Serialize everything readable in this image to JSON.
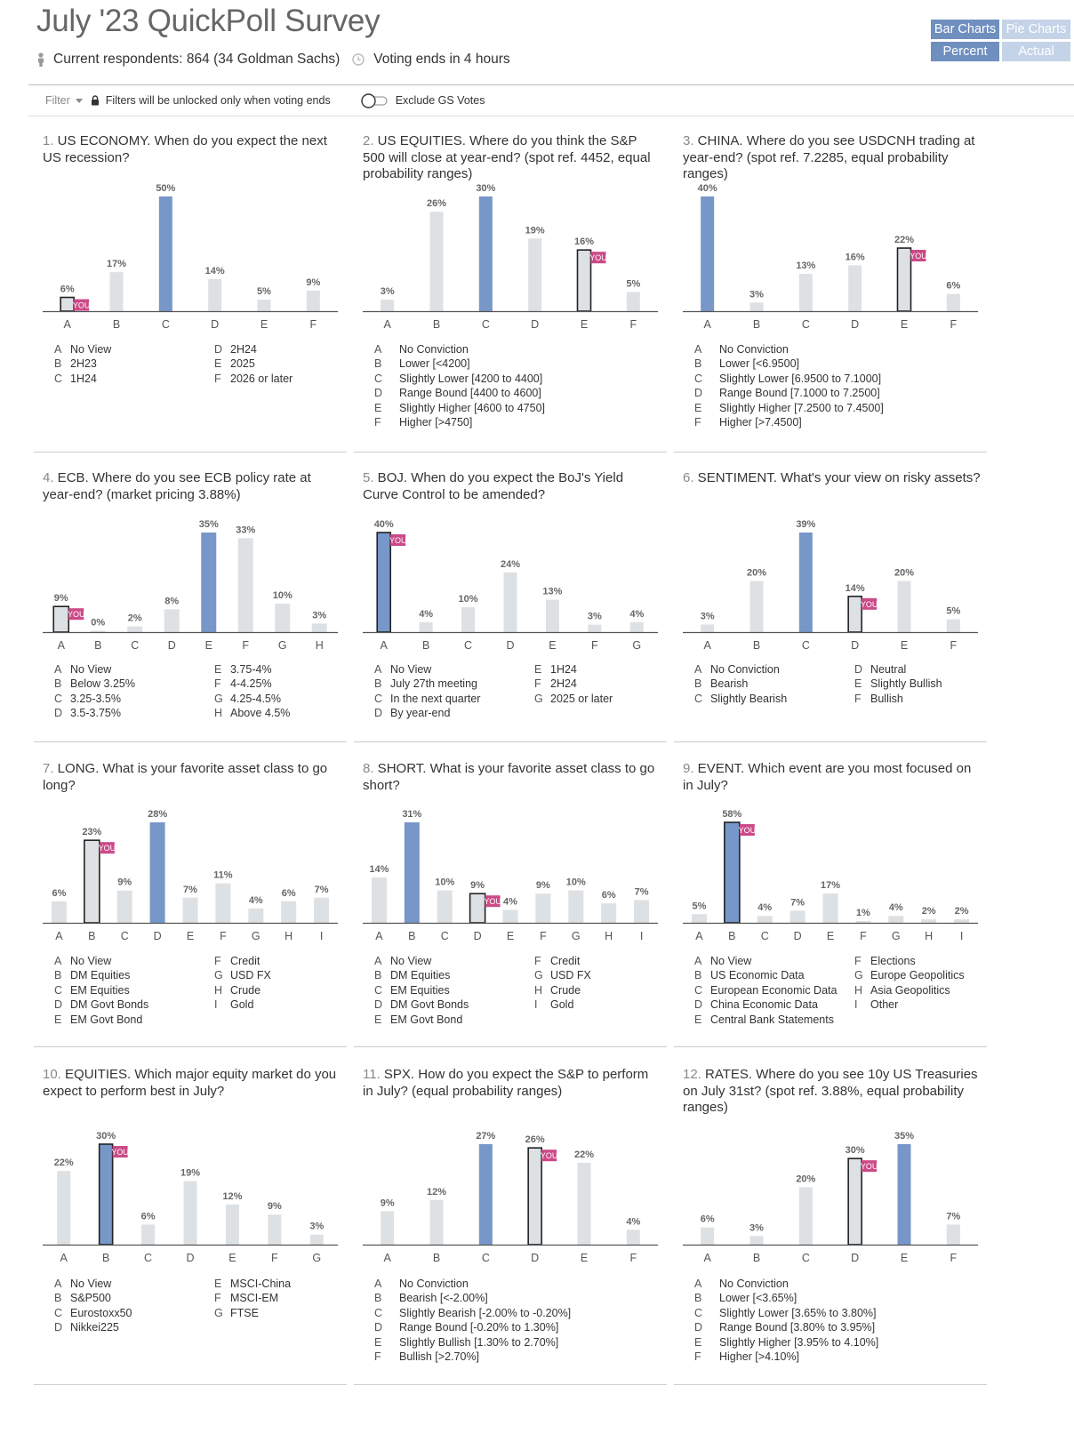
{
  "title": "July '23 QuickPoll Survey",
  "respondents": "Current respondents: 864 (34 Goldman Sachs)",
  "voting": "Voting ends in 4 hours",
  "toggles": {
    "bar": "Bar Charts",
    "pie": "Pie Charts",
    "percent": "Percent",
    "actual": "Actual"
  },
  "filter": {
    "label": "Filter",
    "note": "Filters will be unlocked only when voting ends",
    "exclude": "Exclude GS Votes"
  },
  "colors": {
    "selected": "#7797c8",
    "bar": "#dde1e4",
    "you_badge": "#cc4a88",
    "axis": "#555555"
  },
  "you_label": "YOU",
  "questions": [
    {
      "num": "1.",
      "text": "US ECONOMY. When do you expect the next US recession?",
      "legend_split": 3,
      "options": [
        {
          "key": "A",
          "label": "No View",
          "value": 6,
          "you": true
        },
        {
          "key": "B",
          "label": "2H23",
          "value": 17
        },
        {
          "key": "C",
          "label": "1H24",
          "value": 50,
          "top": true
        },
        {
          "key": "D",
          "label": "2H24",
          "value": 14
        },
        {
          "key": "E",
          "label": "2025",
          "value": 5
        },
        {
          "key": "F",
          "label": "2026 or later",
          "value": 9
        }
      ]
    },
    {
      "num": "2.",
      "text": "US EQUITIES. Where do you think the S&P 500 will close at year-end? (spot ref. 4452, equal probability ranges)",
      "legend_split": 6,
      "options": [
        {
          "key": "A",
          "label": "No Conviction",
          "value": 3
        },
        {
          "key": "B",
          "label": "Lower [<4200]",
          "value": 26
        },
        {
          "key": "C",
          "label": "Slightly Lower [4200 to 4400]",
          "value": 30,
          "top": true
        },
        {
          "key": "D",
          "label": "Range Bound [4400 to 4600]",
          "value": 19
        },
        {
          "key": "E",
          "label": "Slightly Higher [4600 to 4750]",
          "value": 16,
          "you": true
        },
        {
          "key": "F",
          "label": "Higher [>4750]",
          "value": 5
        }
      ]
    },
    {
      "num": "3.",
      "text": "CHINA. Where do you see USDCNH trading at year-end? (spot ref. 7.2285, equal probability ranges)",
      "legend_split": 6,
      "options": [
        {
          "key": "A",
          "label": "No Conviction",
          "value": 40,
          "top": true
        },
        {
          "key": "B",
          "label": "Lower [<6.9500]",
          "value": 3
        },
        {
          "key": "C",
          "label": "Slightly Lower [6.9500 to 7.1000]",
          "value": 13
        },
        {
          "key": "D",
          "label": "Range Bound [7.1000 to 7.2500]",
          "value": 16
        },
        {
          "key": "E",
          "label": "Slightly Higher [7.2500 to 7.4500]",
          "value": 22,
          "you": true
        },
        {
          "key": "F",
          "label": "Higher [>7.4500]",
          "value": 6
        }
      ]
    },
    {
      "num": "4.",
      "text": "ECB. Where do you see ECB policy rate at year-end? (market pricing 3.88%)",
      "legend_split": 4,
      "options": [
        {
          "key": "A",
          "label": "No View",
          "value": 9,
          "you": true
        },
        {
          "key": "B",
          "label": "Below 3.25%",
          "value": 0
        },
        {
          "key": "C",
          "label": "3.25-3.5%",
          "value": 2
        },
        {
          "key": "D",
          "label": "3.5-3.75%",
          "value": 8
        },
        {
          "key": "E",
          "label": "3.75-4%",
          "value": 35,
          "top": true
        },
        {
          "key": "F",
          "label": "4-4.25%",
          "value": 33
        },
        {
          "key": "G",
          "label": "4.25-4.5%",
          "value": 10
        },
        {
          "key": "H",
          "label": "Above 4.5%",
          "value": 3
        }
      ]
    },
    {
      "num": "5.",
      "text": "BOJ. When do you expect the BoJ's Yield Curve Control to be amended?",
      "legend_split": 4,
      "options": [
        {
          "key": "A",
          "label": "No View",
          "value": 40,
          "top": true,
          "you": true
        },
        {
          "key": "B",
          "label": "July 27th meeting",
          "value": 4
        },
        {
          "key": "C",
          "label": "In the next quarter",
          "value": 10
        },
        {
          "key": "D",
          "label": "By year-end",
          "value": 24
        },
        {
          "key": "E",
          "label": "1H24",
          "value": 13
        },
        {
          "key": "F",
          "label": "2H24",
          "value": 3
        },
        {
          "key": "G",
          "label": "2025 or later",
          "value": 4
        }
      ]
    },
    {
      "num": "6.",
      "text": "SENTIMENT. What's your view on risky assets?",
      "legend_split": 3,
      "options": [
        {
          "key": "A",
          "label": "No Conviction",
          "value": 3
        },
        {
          "key": "B",
          "label": "Bearish",
          "value": 20
        },
        {
          "key": "C",
          "label": "Slightly Bearish",
          "value": 39,
          "top": true
        },
        {
          "key": "D",
          "label": "Neutral",
          "value": 14,
          "you": true
        },
        {
          "key": "E",
          "label": "Slightly Bullish",
          "value": 20
        },
        {
          "key": "F",
          "label": "Bullish",
          "value": 5
        }
      ]
    },
    {
      "num": "7.",
      "text": "LONG. What is your favorite asset class to go long?",
      "legend_split": 5,
      "options": [
        {
          "key": "A",
          "label": "No View",
          "value": 6
        },
        {
          "key": "B",
          "label": "DM Equities",
          "value": 23,
          "you": true
        },
        {
          "key": "C",
          "label": "EM Equities",
          "value": 9
        },
        {
          "key": "D",
          "label": "DM Govt Bonds",
          "value": 28,
          "top": true
        },
        {
          "key": "E",
          "label": "EM Govt Bond",
          "value": 7
        },
        {
          "key": "F",
          "label": "Credit",
          "value": 11
        },
        {
          "key": "G",
          "label": "USD FX",
          "value": 4
        },
        {
          "key": "H",
          "label": "Crude",
          "value": 6
        },
        {
          "key": "I",
          "label": "Gold",
          "value": 7
        }
      ]
    },
    {
      "num": "8.",
      "text": "SHORT. What is your favorite asset class to go short?",
      "legend_split": 5,
      "options": [
        {
          "key": "A",
          "label": "No View",
          "value": 14
        },
        {
          "key": "B",
          "label": "DM Equities",
          "value": 31,
          "top": true
        },
        {
          "key": "C",
          "label": "EM Equities",
          "value": 10
        },
        {
          "key": "D",
          "label": "DM Govt Bonds",
          "value": 9,
          "you": true
        },
        {
          "key": "E",
          "label": "EM Govt Bond",
          "value": 4
        },
        {
          "key": "F",
          "label": "Credit",
          "value": 9
        },
        {
          "key": "G",
          "label": "USD FX",
          "value": 10
        },
        {
          "key": "H",
          "label": "Crude",
          "value": 6
        },
        {
          "key": "I",
          "label": "Gold",
          "value": 7
        }
      ]
    },
    {
      "num": "9.",
      "text": "EVENT. Which event are you most focused on in July?",
      "legend_split": 5,
      "options": [
        {
          "key": "A",
          "label": "No View",
          "value": 5
        },
        {
          "key": "B",
          "label": "US Economic Data",
          "value": 58,
          "top": true,
          "you": true
        },
        {
          "key": "C",
          "label": "European Economic Data",
          "value": 4
        },
        {
          "key": "D",
          "label": "China Economic Data",
          "value": 7
        },
        {
          "key": "E",
          "label": "Central Bank Statements",
          "value": 17
        },
        {
          "key": "F",
          "label": "Elections",
          "value": 1
        },
        {
          "key": "G",
          "label": "Europe Geopolitics",
          "value": 4
        },
        {
          "key": "H",
          "label": "Asia Geopolitics",
          "value": 2
        },
        {
          "key": "I",
          "label": "Other",
          "value": 2
        }
      ]
    },
    {
      "num": "10.",
      "text": "EQUITIES. Which major equity market do you expect to perform best in July?",
      "legend_split": 4,
      "options": [
        {
          "key": "A",
          "label": "No View",
          "value": 22
        },
        {
          "key": "B",
          "label": "S&P500",
          "value": 30,
          "top": true,
          "you": true
        },
        {
          "key": "C",
          "label": "Eurostoxx50",
          "value": 6
        },
        {
          "key": "D",
          "label": "Nikkei225",
          "value": 19
        },
        {
          "key": "E",
          "label": "MSCI-China",
          "value": 12
        },
        {
          "key": "F",
          "label": "MSCI-EM",
          "value": 9
        },
        {
          "key": "G",
          "label": "FTSE",
          "value": 3
        }
      ]
    },
    {
      "num": "11.",
      "text": "SPX. How do you expect the S&P to perform in July? (equal probability ranges)",
      "legend_split": 6,
      "options": [
        {
          "key": "A",
          "label": "No Conviction",
          "value": 9
        },
        {
          "key": "B",
          "label": "Bearish [<-2.00%]",
          "value": 12
        },
        {
          "key": "C",
          "label": "Slightly Bearish [-2.00% to -0.20%]",
          "value": 27,
          "top": true
        },
        {
          "key": "D",
          "label": "Range Bound [-0.20% to 1.30%]",
          "value": 26,
          "you": true
        },
        {
          "key": "E",
          "label": "Slightly Bullish [1.30% to 2.70%]",
          "value": 22
        },
        {
          "key": "F",
          "label": "Bullish [>2.70%]",
          "value": 4
        }
      ]
    },
    {
      "num": "12.",
      "text": "RATES. Where do you see 10y US Treasuries on July 31st? (spot ref. 3.88%, equal probability ranges)",
      "legend_split": 6,
      "options": [
        {
          "key": "A",
          "label": "No Conviction",
          "value": 6
        },
        {
          "key": "B",
          "label": "Lower [<3.65%]",
          "value": 3
        },
        {
          "key": "C",
          "label": "Slightly Lower [3.65% to 3.80%]",
          "value": 20
        },
        {
          "key": "D",
          "label": "Range Bound [3.80% to 3.95%]",
          "value": 30,
          "you": true
        },
        {
          "key": "E",
          "label": "Slightly Higher [3.95% to 4.10%]",
          "value": 35,
          "top": true
        },
        {
          "key": "F",
          "label": "Higher [>4.10%]",
          "value": 7
        }
      ]
    }
  ]
}
